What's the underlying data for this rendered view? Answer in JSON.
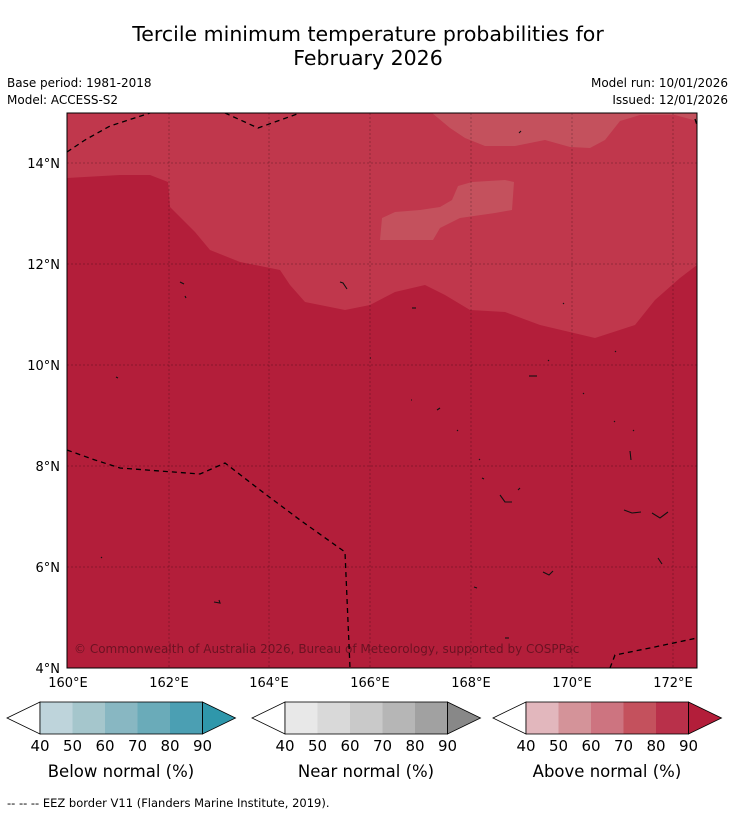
{
  "title_line1": "Tercile minimum temperature probabilities for",
  "title_line2": "February 2026",
  "meta": {
    "base_period": "Base period: 1981-2018",
    "model": "Model: ACCESS-S2",
    "model_run": "Model run: 10/01/2026",
    "issued": "Issued: 12/01/2026"
  },
  "map": {
    "lat_labels": [
      "14°N",
      "12°N",
      "10°N",
      "8°N",
      "6°N",
      "4°N"
    ],
    "lon_labels": [
      "160°E",
      "162°E",
      "164°E",
      "166°E",
      "168°E",
      "170°E",
      "172°E"
    ],
    "copyright": "© Commonwealth of Australia 2026, Bureau of Meteorology, supported by COSPPac",
    "colors": {
      "above_80": "#b31e3a",
      "above_70": "#c0374c",
      "above_60": "#c4515d"
    }
  },
  "legends": [
    {
      "label": "Below normal (%)",
      "ticks": [
        "40",
        "50",
        "60",
        "70",
        "80",
        "90"
      ],
      "colors": [
        "#ffffff",
        "#bed4db",
        "#a5c6cc",
        "#88b7c2",
        "#6aabb9",
        "#4b9fb3",
        "#2f97ab"
      ]
    },
    {
      "label": "Near normal (%)",
      "ticks": [
        "40",
        "50",
        "60",
        "70",
        "80",
        "90"
      ],
      "colors": [
        "#ffffff",
        "#e8e8e8",
        "#d9d9d9",
        "#c9c9c9",
        "#b6b6b6",
        "#a1a1a1",
        "#888888"
      ]
    },
    {
      "label": "Above normal (%)",
      "ticks": [
        "40",
        "50",
        "60",
        "70",
        "80",
        "90"
      ],
      "colors": [
        "#ffffff",
        "#e2b7bd",
        "#d49399",
        "#cd7480",
        "#c4515d",
        "#b9304a",
        "#b31e3a"
      ]
    }
  ],
  "footnote": "--  --  -- EEZ border V11 (Flanders Marine Institute, 2019)."
}
